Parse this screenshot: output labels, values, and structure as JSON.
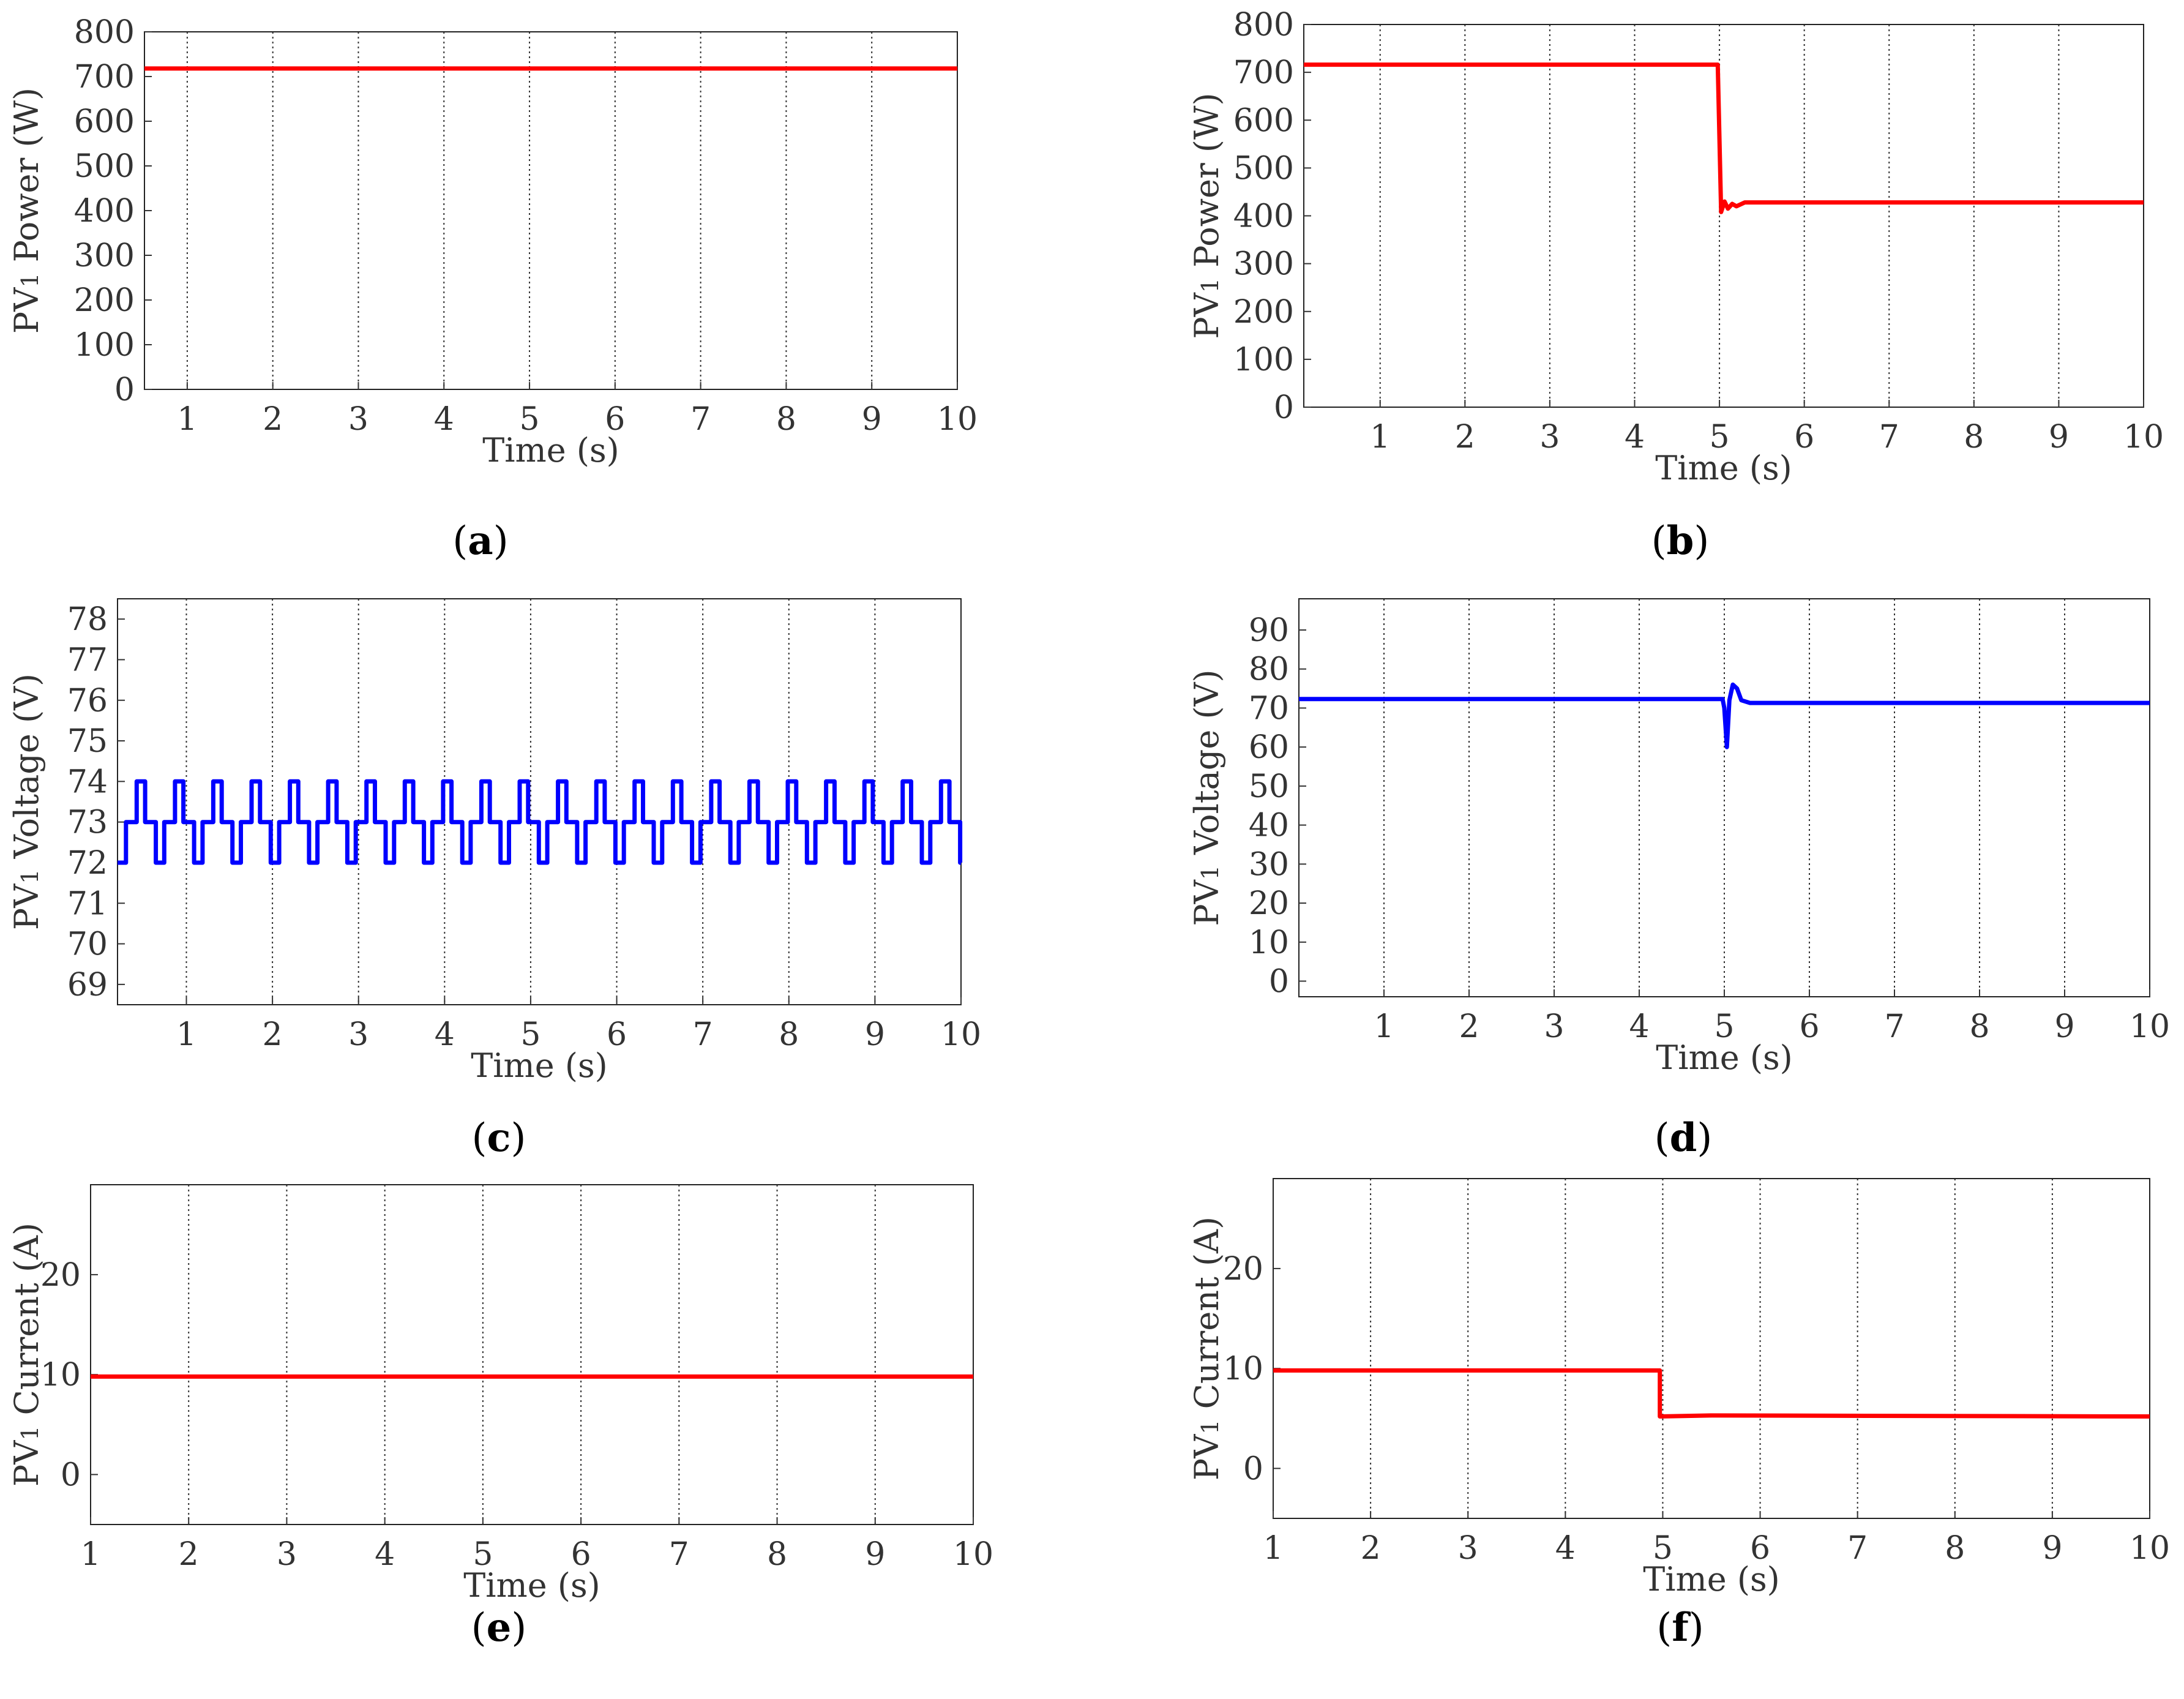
{
  "figure": {
    "panels": [
      {
        "id": "a",
        "caption_letter": "a"
      },
      {
        "id": "b",
        "caption_letter": "b"
      },
      {
        "id": "c",
        "caption_letter": "c"
      },
      {
        "id": "d",
        "caption_letter": "d"
      },
      {
        "id": "e",
        "caption_letter": "e"
      },
      {
        "id": "f",
        "caption_letter": "f"
      }
    ]
  },
  "chart_data": [
    {
      "id": "a",
      "type": "line",
      "xlabel": "Time (s)",
      "ylabel_prefix": "PV",
      "ylabel_subscript": "1",
      "ylabel_suffix": " Power (W)",
      "xlim": [
        0.5,
        10
      ],
      "ylim": [
        0,
        800
      ],
      "xticks": [
        1,
        2,
        3,
        4,
        5,
        6,
        7,
        8,
        9,
        10
      ],
      "yticks": [
        0,
        100,
        200,
        300,
        400,
        500,
        600,
        700,
        800
      ],
      "grid": "x-dotted",
      "series": [
        {
          "name": "PV1 Power",
          "color": "#ff0000",
          "kind": "points",
          "x": [
            0.5,
            10
          ],
          "y": [
            718,
            718
          ]
        }
      ]
    },
    {
      "id": "b",
      "type": "line",
      "xlabel": "Time (s)",
      "ylabel_prefix": "PV",
      "ylabel_subscript": "1",
      "ylabel_suffix": " Power (W)",
      "xlim": [
        0.1,
        10
      ],
      "ylim": [
        0,
        800
      ],
      "xticks": [
        1,
        2,
        3,
        4,
        5,
        6,
        7,
        8,
        9,
        10
      ],
      "yticks": [
        0,
        100,
        200,
        300,
        400,
        500,
        600,
        700,
        800
      ],
      "grid": "x-dotted",
      "series": [
        {
          "name": "PV1 Power",
          "color": "#ff0000",
          "kind": "points",
          "x": [
            0.1,
            4.98,
            5.02,
            5.06,
            5.1,
            5.15,
            5.2,
            5.3,
            10
          ],
          "y": [
            716,
            716,
            408,
            430,
            415,
            425,
            420,
            428,
            428
          ]
        }
      ]
    },
    {
      "id": "c",
      "type": "line",
      "xlabel": "Time (s)",
      "ylabel_prefix": "PV",
      "ylabel_subscript": "1",
      "ylabel_suffix": " Voltage (V)",
      "xlim": [
        0.2,
        10
      ],
      "ylim": [
        68.5,
        78.5
      ],
      "xticks": [
        1,
        2,
        3,
        4,
        5,
        6,
        7,
        8,
        9,
        10
      ],
      "yticks": [
        69,
        70,
        71,
        72,
        73,
        74,
        75,
        76,
        77,
        78
      ],
      "grid": "x-dotted",
      "series": [
        {
          "name": "PV1 Voltage",
          "color": "#0000ff",
          "kind": "square-wave",
          "start": 0.2,
          "end": 10,
          "period": 0.445,
          "sequence": [
            72,
            73,
            74,
            73
          ],
          "x_steps": [
            0,
            0.05,
            0.1,
            0.3
          ]
        }
      ]
    },
    {
      "id": "d",
      "type": "line",
      "xlabel": "Time (s)",
      "ylabel_prefix": "PV",
      "ylabel_subscript": "1",
      "ylabel_suffix": " Voltage (V)",
      "xlim": [
        0.0,
        10
      ],
      "ylim": [
        -4,
        98
      ],
      "xticks": [
        1,
        2,
        3,
        4,
        5,
        6,
        7,
        8,
        9,
        10
      ],
      "yticks": [
        0,
        10,
        20,
        30,
        40,
        50,
        60,
        70,
        80,
        90
      ],
      "grid": "x-dotted",
      "series": [
        {
          "name": "PV1 Voltage",
          "color": "#0000ff",
          "kind": "points",
          "x": [
            0.0,
            4.98,
            5.0,
            5.03,
            5.06,
            5.1,
            5.15,
            5.2,
            5.3,
            10
          ],
          "y": [
            72.3,
            72.3,
            70,
            60,
            72,
            76,
            75,
            72,
            71.3,
            71.3
          ]
        }
      ]
    },
    {
      "id": "e",
      "type": "line",
      "xlabel": "Time (s)",
      "ylabel_prefix": "PV",
      "ylabel_subscript": "1",
      "ylabel_suffix": " Current (A)",
      "xlim": [
        1,
        10
      ],
      "ylim": [
        -5,
        29
      ],
      "xticks": [
        1,
        2,
        3,
        4,
        5,
        6,
        7,
        8,
        9,
        10
      ],
      "yticks": [
        0,
        10,
        20
      ],
      "grid": "x-dotted",
      "series": [
        {
          "name": "PV1 Current",
          "color": "#ff0000",
          "kind": "points",
          "x": [
            1,
            10
          ],
          "y": [
            9.8,
            9.8
          ]
        }
      ]
    },
    {
      "id": "f",
      "type": "line",
      "xlabel": "Time (s)",
      "ylabel_prefix": "PV",
      "ylabel_subscript": "1",
      "ylabel_suffix": " Current (A)",
      "xlim": [
        1,
        10
      ],
      "ylim": [
        -5,
        29
      ],
      "xticks": [
        1,
        2,
        3,
        4,
        5,
        6,
        7,
        8,
        9,
        10
      ],
      "yticks": [
        0,
        10,
        20
      ],
      "grid": "x-dotted",
      "series": [
        {
          "name": "PV1 Current",
          "color": "#ff0000",
          "kind": "points",
          "x": [
            1,
            4.97,
            4.97,
            5.5,
            10
          ],
          "y": [
            9.8,
            9.8,
            5.2,
            5.3,
            5.2
          ]
        }
      ]
    }
  ]
}
